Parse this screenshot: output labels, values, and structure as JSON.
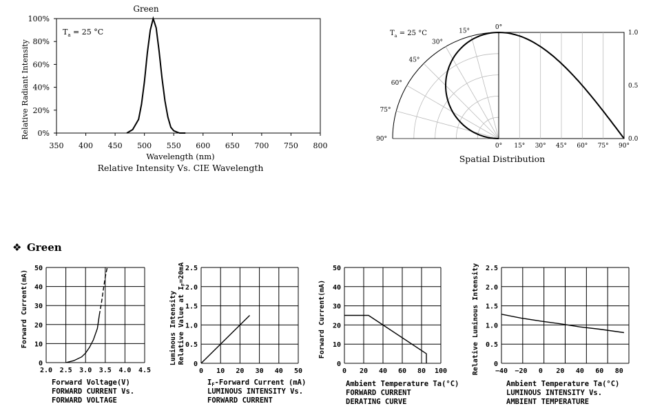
{
  "section_title": "Green",
  "section_bullet": "❖",
  "chart_data": [
    {
      "id": "spectrum",
      "type": "line",
      "series": [
        {
          "name": "Green",
          "x": [
            470,
            480,
            490,
            495,
            500,
            505,
            510,
            515,
            520,
            525,
            530,
            535,
            540,
            545,
            550,
            560,
            570
          ],
          "y": [
            0,
            3,
            12,
            25,
            45,
            70,
            90,
            100,
            92,
            72,
            48,
            28,
            14,
            5,
            2,
            0,
            0
          ]
        }
      ],
      "title": "Relative Intensity Vs. CIE Wavelength",
      "xlabel": "Wavelength (nm)",
      "ylabel": "Relative  Radiant Intensity",
      "annotation": {
        "main": "T",
        "sub": "a",
        "rest": " = 25 °C"
      },
      "xticks": [
        "350",
        "400",
        "450",
        "500",
        "550",
        "600",
        "650",
        "700",
        "750",
        "800"
      ],
      "yticks": [
        "0%",
        "20%",
        "40%",
        "60%",
        "80%",
        "100%"
      ],
      "xlim": [
        350,
        800
      ],
      "ylim": [
        0,
        100
      ]
    },
    {
      "id": "spatial",
      "type": "line",
      "title": "Spatial Distribution",
      "annotation": {
        "main": "T",
        "sub": "a",
        "rest": " = 25 °C"
      },
      "angle_labels": [
        "0°",
        "15°",
        "30°",
        "45°",
        "60°",
        "75°",
        "90°"
      ],
      "x_labels": [
        "0°",
        "15°",
        "30°",
        "45°",
        "60°",
        "75°",
        "90°"
      ],
      "y_labels": [
        "1.0",
        "0.5",
        "0.0"
      ],
      "series": [
        {
          "angle_deg": [
            0,
            15,
            30,
            45,
            60,
            75,
            90
          ],
          "value": [
            1.0,
            0.97,
            0.87,
            0.71,
            0.5,
            0.26,
            0.0
          ]
        }
      ]
    },
    {
      "id": "iv",
      "type": "line",
      "xlabel": "Forward  Voltage(V)",
      "ylabel": "Forward  Current(mA)",
      "caption": [
        "FORWARD CURRENT Vs.",
        "FORWARD VOLTAGE"
      ],
      "xticks": [
        "2.0",
        "2.5",
        "3.0",
        "3.5",
        "4.0",
        "4.5"
      ],
      "yticks": [
        "0",
        "10",
        "20",
        "30",
        "40",
        "50"
      ],
      "xlim": [
        2.0,
        4.5
      ],
      "ylim": [
        0,
        50
      ],
      "series": [
        {
          "x": [
            2.5,
            2.7,
            2.9,
            3.0,
            3.1,
            3.2,
            3.3,
            3.35
          ],
          "y": [
            0,
            1,
            3,
            5,
            8,
            12,
            18,
            25
          ]
        },
        {
          "x": [
            3.35,
            3.4,
            3.45,
            3.5,
            3.55
          ],
          "y": [
            25,
            31,
            38,
            45,
            50
          ]
        }
      ]
    },
    {
      "id": "lum_current",
      "type": "line",
      "xlabel_main": "-Forward  Current  (mA)",
      "xlabel_pre": "I",
      "xlabel_sub": "F",
      "ylabel1": "Luminous  Intensity",
      "ylabel2": "Relative  Value  at  I",
      "ylabel2_sub": "F",
      "ylabel2_post": "=20mA",
      "caption": [
        "LUMINOUS INTENSITY Vs.",
        "FORWARD CURRENT"
      ],
      "xticks": [
        "0",
        "10",
        "20",
        "30",
        "40",
        "50"
      ],
      "yticks": [
        "0",
        "0.5",
        "1.0",
        "1.5",
        "2.0",
        "2.5"
      ],
      "xlim": [
        0,
        50
      ],
      "ylim": [
        0,
        2.5
      ],
      "series": [
        {
          "x": [
            0,
            25
          ],
          "y": [
            0,
            1.25
          ]
        }
      ]
    },
    {
      "id": "derating",
      "type": "line",
      "xlabel": "Ambient  Temperature  Ta(°C)",
      "ylabel": "Forward  Current(mA)",
      "caption": [
        "FORWARD CURRENT",
        "DERATING CURVE"
      ],
      "xticks": [
        "0",
        "20",
        "40",
        "60",
        "80",
        "100"
      ],
      "yticks": [
        "0",
        "10",
        "20",
        "30",
        "40",
        "50"
      ],
      "xlim": [
        0,
        100
      ],
      "ylim": [
        0,
        50
      ],
      "series": [
        {
          "x": [
            0,
            25,
            85,
            85
          ],
          "y": [
            25,
            25,
            5,
            0
          ]
        }
      ]
    },
    {
      "id": "lum_temp",
      "type": "line",
      "xlabel": "Ambient  Temperature  Ta(°C)",
      "ylabel": "Relative  Luminous  Intensity",
      "caption": [
        "LUMINOUS INTENSITY Vs.",
        "AMBIENT TEMPERATURE"
      ],
      "xticks": [
        "−40",
        "−20",
        "0",
        "20",
        "40",
        "60",
        "80"
      ],
      "yticks": [
        "0",
        "0.5",
        "1.0",
        "1.5",
        "2.0",
        "2.5"
      ],
      "xlim": [
        -40,
        90
      ],
      "ylim": [
        0,
        2.5
      ],
      "series": [
        {
          "x": [
            -40,
            -20,
            0,
            20,
            40,
            60,
            85
          ],
          "y": [
            1.28,
            1.18,
            1.1,
            1.03,
            0.95,
            0.89,
            0.8
          ]
        }
      ]
    }
  ]
}
